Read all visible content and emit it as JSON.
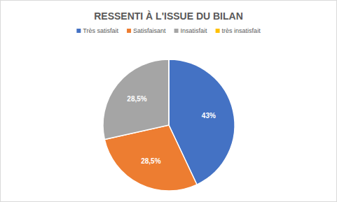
{
  "chart_data": {
    "type": "pie",
    "title": "RESSENTI À L'ISSUE DU BILAN",
    "categories": [
      "Très satisfait",
      "Satisfaisant",
      "Insatisfait",
      "très insatisfait"
    ],
    "values": [
      43,
      28.5,
      28.5,
      0
    ],
    "value_labels": [
      "43%",
      "28,5%",
      "28,5%",
      null
    ],
    "colors": [
      "#4472c4",
      "#ed7d31",
      "#a5a5a5",
      "#ffc000"
    ],
    "legend": "top",
    "data_labels": true
  }
}
